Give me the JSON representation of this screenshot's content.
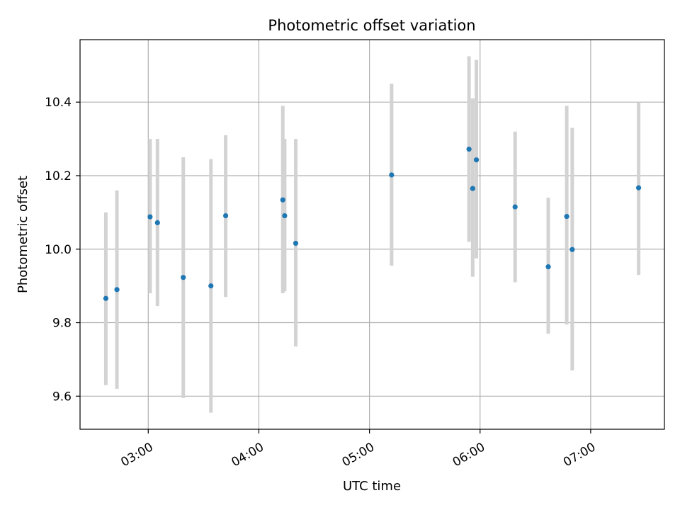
{
  "chart_data": {
    "type": "scatter",
    "title": "Photometric offset variation",
    "xlabel": "UTC time",
    "ylabel": "Photometric offset",
    "x_scale": "time",
    "xlim": [
      "02:23",
      "07:40"
    ],
    "ylim": [
      9.51,
      10.57
    ],
    "x_ticks": [
      "03:00",
      "04:00",
      "05:00",
      "06:00",
      "07:00"
    ],
    "y_ticks": [
      9.6,
      9.8,
      10.0,
      10.2,
      10.4
    ],
    "y_tick_labels": [
      "9.6",
      "9.8",
      "10.0",
      "10.2",
      "10.4"
    ],
    "grid": true,
    "colors": {
      "points": "#1f77b4",
      "error_bars": "#d3d3d3",
      "grid": "#b0b0b0"
    },
    "series": [
      {
        "points": [
          {
            "x": "02:37",
            "y": 9.866,
            "ylow": 9.63,
            "yhigh": 10.1
          },
          {
            "x": "02:43",
            "y": 9.89,
            "ylow": 9.62,
            "yhigh": 10.16
          },
          {
            "x": "03:01",
            "y": 10.088,
            "ylow": 9.88,
            "yhigh": 10.3
          },
          {
            "x": "03:05",
            "y": 10.072,
            "ylow": 9.845,
            "yhigh": 10.3
          },
          {
            "x": "03:19",
            "y": 9.923,
            "ylow": 9.595,
            "yhigh": 10.25
          },
          {
            "x": "03:34",
            "y": 9.9,
            "ylow": 9.555,
            "yhigh": 10.245
          },
          {
            "x": "03:42",
            "y": 10.091,
            "ylow": 9.87,
            "yhigh": 10.31
          },
          {
            "x": "04:13",
            "y": 10.134,
            "ylow": 9.88,
            "yhigh": 10.39
          },
          {
            "x": "04:14",
            "y": 10.091,
            "ylow": 9.885,
            "yhigh": 10.3
          },
          {
            "x": "04:20",
            "y": 10.016,
            "ylow": 9.735,
            "yhigh": 10.3
          },
          {
            "x": "05:12",
            "y": 10.202,
            "ylow": 9.955,
            "yhigh": 10.45
          },
          {
            "x": "05:54",
            "y": 10.272,
            "ylow": 10.02,
            "yhigh": 10.525
          },
          {
            "x": "05:56",
            "y": 10.165,
            "ylow": 9.925,
            "yhigh": 10.41
          },
          {
            "x": "05:58",
            "y": 10.243,
            "ylow": 9.975,
            "yhigh": 10.515
          },
          {
            "x": "06:19",
            "y": 10.115,
            "ylow": 9.91,
            "yhigh": 10.32
          },
          {
            "x": "06:37",
            "y": 9.952,
            "ylow": 9.77,
            "yhigh": 10.14
          },
          {
            "x": "06:47",
            "y": 10.089,
            "ylow": 9.795,
            "yhigh": 10.39
          },
          {
            "x": "06:50",
            "y": 9.999,
            "ylow": 9.67,
            "yhigh": 10.33
          },
          {
            "x": "07:26",
            "y": 10.167,
            "ylow": 9.93,
            "yhigh": 10.4
          }
        ]
      }
    ]
  }
}
